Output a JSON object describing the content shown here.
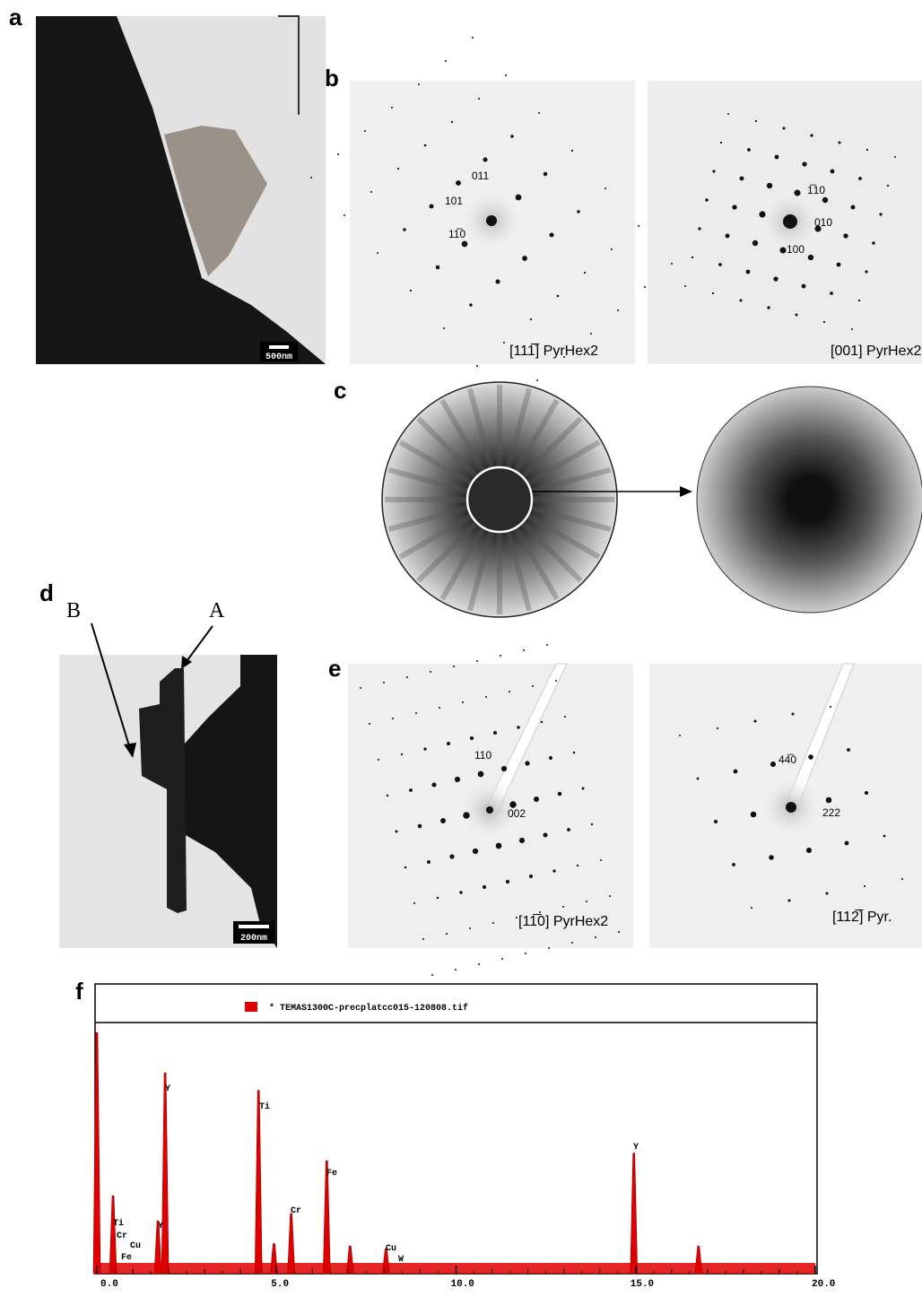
{
  "panels": {
    "a": {
      "label": "a",
      "scale_bar": "500nm"
    },
    "b": {
      "label": "b",
      "left": {
        "zone": "[111̅] PyrHex2",
        "spots": [
          "011",
          "101",
          "11̅0"
        ]
      },
      "right": {
        "zone": "[001] PyrHex2",
        "spots": [
          "1̅10",
          "010",
          "100"
        ]
      }
    },
    "c": {
      "label": "c"
    },
    "d": {
      "label": "d",
      "arrows": [
        "B",
        "A"
      ],
      "scale_bar": "200nm"
    },
    "e": {
      "label": "e",
      "left": {
        "zone": "[11̅0] PyrHex2",
        "spots": [
          "110",
          "002"
        ]
      },
      "right": {
        "zone": "[112̅] Pyr.",
        "spots": [
          "44̅0",
          "222"
        ]
      }
    },
    "f": {
      "label": "f",
      "legend": "* TEMAS1300C-precplatcc015-120808.tif",
      "xlim": [
        0,
        20
      ],
      "xticks": [
        {
          "value": 0,
          "label": "0.0"
        },
        {
          "value": 5,
          "label": "5.0"
        },
        {
          "value": 10,
          "label": "10.0"
        },
        {
          "value": 15,
          "label": "15.0"
        },
        {
          "value": 20,
          "label": "20.0"
        }
      ],
      "ylim": [
        0,
        100
      ],
      "peaks": {
        "energy": [
          0.0,
          0.45,
          1.7,
          1.9,
          4.5,
          4.93,
          5.41,
          6.4,
          7.05,
          8.05,
          14.95,
          16.75
        ],
        "counts": [
          96,
          31,
          21,
          80,
          73,
          12,
          24,
          45,
          11,
          10,
          48,
          11
        ]
      },
      "peak_labels": [
        "Ti",
        "Cr",
        "Cu",
        "Fe",
        "Y",
        "Y",
        "Ti",
        "Cr",
        "Fe",
        "Cu",
        "W",
        "Y"
      ]
    }
  }
}
